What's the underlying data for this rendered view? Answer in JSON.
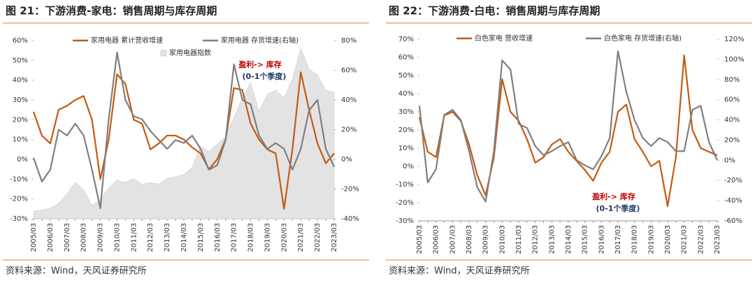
{
  "chart_data": [
    {
      "type": "line",
      "title": "图 21：下游消费-家电：销售周期与库存周期",
      "source": "资料来源：Wind，天风证券研究所",
      "categories": [
        "2005/03",
        null,
        "2006/03",
        null,
        "2007/03",
        null,
        "2008/03",
        null,
        "2009/03",
        null,
        "2010/03",
        null,
        "2011/03",
        null,
        "2012/03",
        null,
        "2013/03",
        null,
        "2014/03",
        null,
        "2015/03",
        null,
        "2016/03",
        null,
        "2017/03",
        null,
        "2018/03",
        null,
        "2019/03",
        null,
        "2020/03",
        null,
        "2021/03",
        null,
        "2022/03",
        null,
        "2023/03"
      ],
      "ylim": [
        -30,
        60
      ],
      "yticks": [
        {
          "value": -30,
          "label": "-30%"
        },
        {
          "value": -20,
          "label": "-20%"
        },
        {
          "value": -10,
          "label": "-10%"
        },
        {
          "value": 0,
          "label": "0%"
        },
        {
          "value": 10,
          "label": "10%"
        },
        {
          "value": 20,
          "label": "20%"
        },
        {
          "value": 30,
          "label": "30%"
        },
        {
          "value": 40,
          "label": "40%"
        },
        {
          "value": 50,
          "label": "50%"
        },
        {
          "value": 60,
          "label": "60%"
        }
      ],
      "y2lim": [
        -40,
        80
      ],
      "y2ticks": [
        {
          "value": -40,
          "label": "-40%"
        },
        {
          "value": -20,
          "label": "-20%"
        },
        {
          "value": 0,
          "label": "0%"
        },
        {
          "value": 20,
          "label": "20%"
        },
        {
          "value": 40,
          "label": "40%"
        },
        {
          "value": 60,
          "label": "60%"
        },
        {
          "value": 80,
          "label": "80%"
        }
      ],
      "y3lim": [
        -300,
        9000
      ],
      "grid": false,
      "series": [
        {
          "name": "家用电器指数",
          "color": "#e3e3e3",
          "kind": "area",
          "axis": "y3",
          "values": [
            100,
            150,
            250,
            500,
            1000,
            1600,
            1200,
            400,
            700,
            1300,
            1700,
            1600,
            1800,
            1500,
            1600,
            1500,
            1800,
            1900,
            2000,
            2400,
            3500,
            3200,
            3600,
            4000,
            5000,
            6000,
            6800,
            5300,
            6200,
            6400,
            6000,
            7000,
            8600,
            7500,
            7200,
            6400,
            6300
          ]
        },
        {
          "name": "家用电器 累计营收增速",
          "color": "#c55a11",
          "values": [
            24,
            12,
            8,
            25,
            27,
            30,
            32,
            20,
            -10,
            10,
            43,
            38,
            20,
            18,
            5,
            8,
            12,
            12,
            10,
            6,
            3,
            -5,
            0,
            10,
            36,
            35,
            18,
            10,
            5,
            3,
            -25,
            5,
            44,
            25,
            8,
            -2,
            3
          ]
        },
        {
          "name": "家用电器 存货增速(右轴)",
          "color": "#7f7f7f",
          "axis": "y2",
          "values": [
            1,
            -15,
            -7,
            20,
            16,
            24,
            16,
            -7,
            -33,
            27,
            72,
            40,
            29,
            27,
            19,
            13,
            7,
            13,
            11,
            16,
            7,
            -7,
            -4,
            13,
            64,
            40,
            37,
            16,
            7,
            11,
            7,
            -7,
            7,
            33,
            40,
            7,
            -5
          ]
        }
      ],
      "annotations": [
        {
          "text": "盈利-> 库存",
          "color": "#c00000"
        },
        {
          "text": "(0-1个季度)",
          "color": "#1f3864"
        }
      ]
    },
    {
      "type": "line",
      "title": "图 22：下游消费-白电：销售周期与库存周期",
      "source": "资料来源：Wind，天风证券研究所",
      "categories": [
        "2005/03",
        null,
        "2006/03",
        null,
        "2007/03",
        null,
        "2008/03",
        null,
        "2009/03",
        null,
        "2010/03",
        null,
        "2011/03",
        null,
        "2012/03",
        null,
        "2013/03",
        null,
        "2014/03",
        null,
        "2015/03",
        null,
        "2016/03",
        null,
        "2017/03",
        null,
        "2018/03",
        null,
        "2019/03",
        null,
        "2020/03",
        null,
        "2021/03",
        null,
        "2022/03",
        null,
        "2023/03"
      ],
      "ylim": [
        -30,
        70
      ],
      "yticks": [
        {
          "value": -30,
          "label": "-30%"
        },
        {
          "value": -20,
          "label": "-20%"
        },
        {
          "value": -10,
          "label": "-10%"
        },
        {
          "value": 0,
          "label": "0%"
        },
        {
          "value": 10,
          "label": "10%"
        },
        {
          "value": 20,
          "label": "20%"
        },
        {
          "value": 30,
          "label": "30%"
        },
        {
          "value": 40,
          "label": "40%"
        },
        {
          "value": 50,
          "label": "50%"
        },
        {
          "value": 60,
          "label": "60%"
        },
        {
          "value": 70,
          "label": "70%"
        }
      ],
      "y2lim": [
        -60,
        120
      ],
      "y2ticks": [
        {
          "value": -60,
          "label": "-60%"
        },
        {
          "value": -40,
          "label": "-40%"
        },
        {
          "value": -20,
          "label": "-20%"
        },
        {
          "value": 0,
          "label": "0%"
        },
        {
          "value": 20,
          "label": "20%"
        },
        {
          "value": 40,
          "label": "40%"
        },
        {
          "value": 60,
          "label": "60%"
        },
        {
          "value": 80,
          "label": "80%"
        },
        {
          "value": 100,
          "label": "100%"
        },
        {
          "value": 120,
          "label": "120%"
        }
      ],
      "grid": false,
      "series": [
        {
          "name": "白色家电 营收增速",
          "color": "#c55a11",
          "values": [
            27,
            8,
            5,
            28,
            30,
            25,
            12,
            -5,
            -16,
            5,
            48,
            30,
            25,
            15,
            2,
            5,
            12,
            15,
            8,
            3,
            -2,
            -8,
            2,
            8,
            30,
            34,
            15,
            8,
            0,
            3,
            -22,
            5,
            61,
            20,
            10,
            8,
            6
          ]
        },
        {
          "name": "白色家电 存货增速(右轴)",
          "color": "#7f7f7f",
          "axis": "y2",
          "values": [
            54,
            -22,
            -9,
            45,
            50,
            40,
            9,
            -27,
            -41,
            9,
            99,
            90,
            36,
            32,
            14,
            5,
            9,
            14,
            18,
            0,
            -5,
            -9,
            4,
            22,
            108,
            68,
            40,
            22,
            14,
            22,
            18,
            9,
            9,
            50,
            54,
            18,
            0
          ]
        }
      ],
      "annotations": [
        {
          "text": "盈利-> 库存",
          "color": "#c00000"
        },
        {
          "text": "(0-1个季度)",
          "color": "#1f3864"
        }
      ]
    }
  ]
}
